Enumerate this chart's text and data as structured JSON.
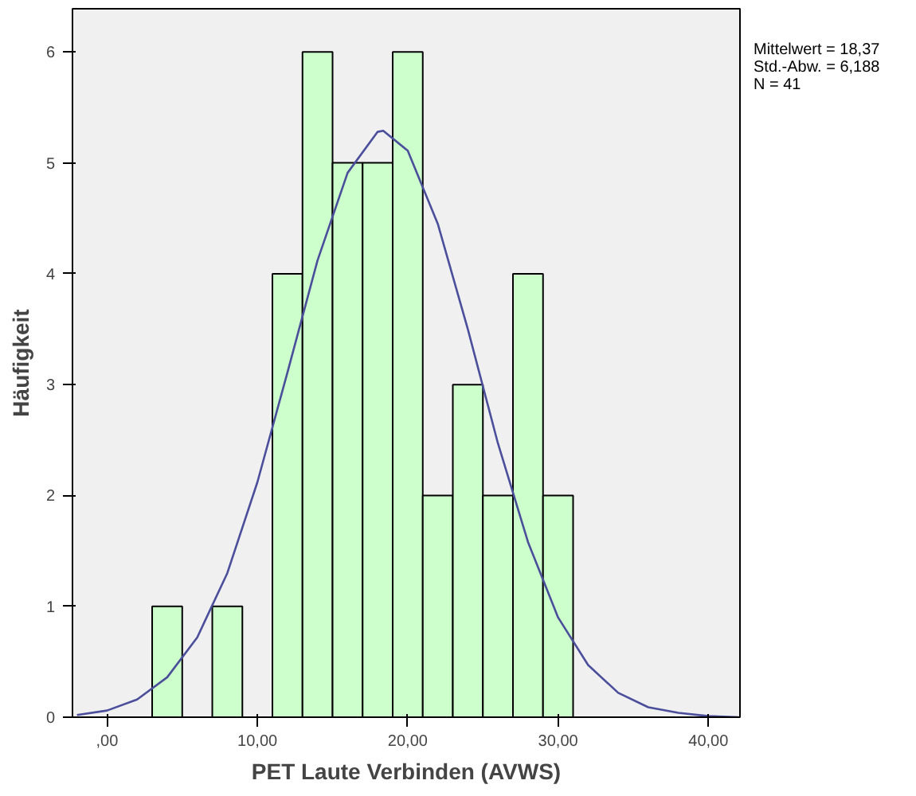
{
  "chart_data": {
    "type": "histogram",
    "xlabel": "PET Laute Verbinden (AVWS)",
    "ylabel": "Häufigkeit",
    "annotations": [
      "Mittelwert = 18,37",
      "Std.-Abw. = 6,188",
      "N = 41"
    ],
    "series": [
      {
        "color": "#ccffcc",
        "bins": [
          3,
          5,
          7,
          9,
          11,
          13,
          15,
          17,
          19,
          21,
          23,
          25,
          27,
          29,
          31
        ],
        "values": [
          1,
          0,
          1,
          0,
          4,
          6,
          5,
          5,
          6,
          2,
          3,
          2,
          4,
          2
        ]
      },
      {
        "type": "line",
        "color": "#4b4e9a",
        "x": [
          -2,
          0,
          2,
          4,
          6,
          8,
          10,
          12,
          14,
          16,
          18,
          18.37,
          20,
          22,
          24,
          26,
          28,
          30,
          32,
          34,
          36,
          38,
          40,
          42
        ],
        "values": [
          0.02,
          0.06,
          0.16,
          0.36,
          0.72,
          1.3,
          2.12,
          3.11,
          4.12,
          4.91,
          5.28,
          5.29,
          5.11,
          4.45,
          3.5,
          2.47,
          1.58,
          0.9,
          0.47,
          0.22,
          0.09,
          0.04,
          0.01,
          0.0
        ]
      }
    ],
    "xlim": [
      -2.3,
      42.1
    ],
    "ylim": [
      0,
      6.39
    ],
    "xticks": [
      {
        "value": 0,
        "label": ",00"
      },
      {
        "value": 10,
        "label": "10,00"
      },
      {
        "value": 20,
        "label": "20,00"
      },
      {
        "value": 30,
        "label": "30,00"
      },
      {
        "value": 40,
        "label": "40,00"
      }
    ],
    "yticks": [
      0,
      1,
      2,
      3,
      4,
      5,
      6
    ]
  }
}
